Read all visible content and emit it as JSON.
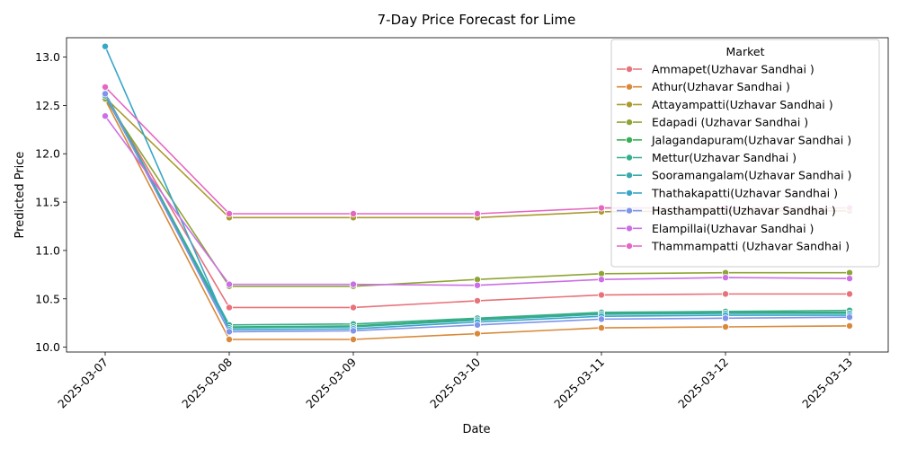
{
  "chart_data": {
    "type": "line",
    "title": "7-Day Price Forecast for Lime",
    "xlabel": "Date",
    "ylabel": "Predicted Price",
    "x": [
      "2025-03-07",
      "2025-03-08",
      "2025-03-09",
      "2025-03-10",
      "2025-03-11",
      "2025-03-12",
      "2025-03-13"
    ],
    "ylim": [
      9.95,
      13.2
    ],
    "yticks": [
      "10.0",
      "10.5",
      "11.0",
      "11.5",
      "12.0",
      "12.5",
      "13.0"
    ],
    "grid": false,
    "legend": {
      "title": "Market",
      "placement": "top-right"
    },
    "series": [
      {
        "name": "Ammapet(Uzhavar Sandhai )",
        "color": "#e8717a",
        "values": [
          12.6,
          10.41,
          10.41,
          10.48,
          10.54,
          10.55,
          10.55
        ]
      },
      {
        "name": "Athur(Uzhavar Sandhai )",
        "color": "#d9893a",
        "values": [
          12.56,
          10.08,
          10.08,
          10.14,
          10.2,
          10.21,
          10.22
        ]
      },
      {
        "name": "Attayampatti(Uzhavar Sandhai )",
        "color": "#ab9a31",
        "values": [
          12.58,
          11.34,
          11.34,
          11.34,
          11.4,
          11.41,
          11.41
        ]
      },
      {
        "name": "Edapadi (Uzhavar Sandhai )",
        "color": "#8ea535",
        "values": [
          12.57,
          10.63,
          10.63,
          10.7,
          10.76,
          10.77,
          10.77
        ]
      },
      {
        "name": "Jalagandapuram(Uzhavar Sandhai )",
        "color": "#3aae57",
        "values": [
          12.61,
          10.21,
          10.22,
          10.29,
          10.35,
          10.36,
          10.36
        ]
      },
      {
        "name": "Mettur(Uzhavar Sandhai )",
        "color": "#36ae8e",
        "values": [
          12.63,
          10.23,
          10.24,
          10.3,
          10.36,
          10.37,
          10.38
        ]
      },
      {
        "name": "Sooramangalam(Uzhavar Sandhai )",
        "color": "#37aaa9",
        "values": [
          12.6,
          10.2,
          10.21,
          10.28,
          10.34,
          10.35,
          10.35
        ]
      },
      {
        "name": "Thathakapatti(Uzhavar Sandhai )",
        "color": "#38a6c8",
        "values": [
          13.11,
          10.18,
          10.19,
          10.26,
          10.32,
          10.33,
          10.33
        ]
      },
      {
        "name": "Hasthampatti(Uzhavar Sandhai )",
        "color": "#7d94ea",
        "values": [
          12.62,
          10.16,
          10.17,
          10.23,
          10.29,
          10.3,
          10.31
        ]
      },
      {
        "name": "Elampillai(Uzhavar Sandhai )",
        "color": "#cc6fe6",
        "values": [
          12.39,
          10.65,
          10.65,
          10.64,
          10.7,
          10.72,
          10.71
        ]
      },
      {
        "name": "Thammampatti (Uzhavar Sandhai )",
        "color": "#e566c2",
        "values": [
          12.69,
          11.38,
          11.38,
          11.38,
          11.44,
          11.44,
          11.44
        ]
      }
    ]
  }
}
